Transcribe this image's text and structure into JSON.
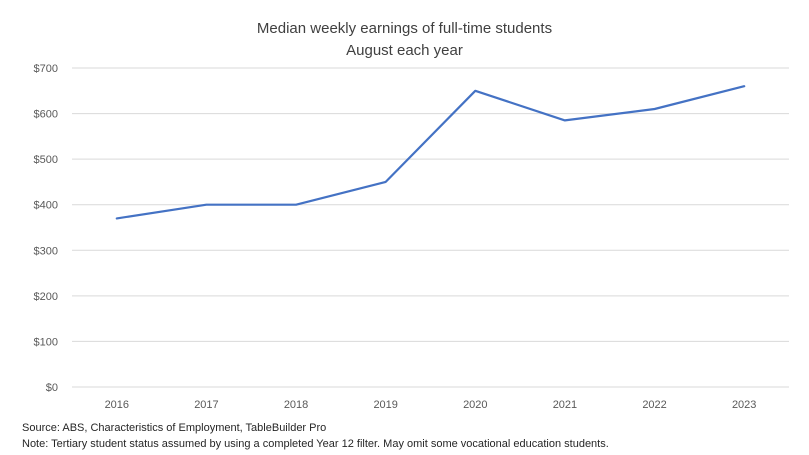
{
  "title": {
    "line1": "Median weekly earnings of full-time students",
    "line2": "August each year"
  },
  "footer": {
    "source": "Source: ABS, Characteristics of Employment, TableBuilder Pro",
    "note": "Note: Tertiary student status assumed by using a completed Year 12 filter. May omit some vocational education students."
  },
  "chart_data": {
    "type": "line",
    "title": "Median weekly earnings of full-time students",
    "subtitle": "August each year",
    "categories": [
      "2016",
      "2017",
      "2018",
      "2019",
      "2020",
      "2021",
      "2022",
      "2023"
    ],
    "series": [
      {
        "name": "Median weekly earnings",
        "values": [
          370,
          400,
          400,
          450,
          650,
          585,
          610,
          660
        ]
      }
    ],
    "xlabel": "",
    "ylabel": "",
    "ylim": [
      0,
      700
    ],
    "ytick_step": 100,
    "ytick_prefix": "$",
    "grid": true,
    "legend_position": "none",
    "colors": {
      "line": "#4472C4",
      "gridline": "#D9D9D9",
      "axis_text": "#595959",
      "title_text": "#404040",
      "footer_text": "#262626"
    }
  }
}
